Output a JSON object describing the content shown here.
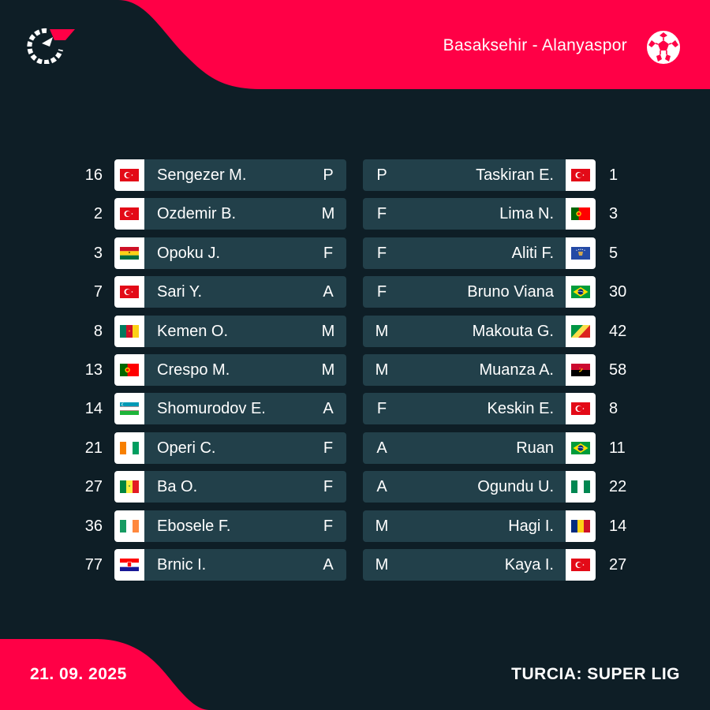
{
  "header": {
    "match_title": "Basaksehir - Alanyaspor",
    "logo_icon": "flashscore-logo-icon",
    "ball_icon": "football-icon",
    "accent_color": "#ff0046"
  },
  "footer": {
    "date": "21. 09. 2025",
    "competition": "TURCIA: SUPER LIG"
  },
  "home_lineup": [
    {
      "number": "16",
      "name": "Sengezer M.",
      "position": "P",
      "flag": "turkey"
    },
    {
      "number": "2",
      "name": "Ozdemir B.",
      "position": "M",
      "flag": "turkey"
    },
    {
      "number": "3",
      "name": "Opoku J.",
      "position": "F",
      "flag": "ghana"
    },
    {
      "number": "7",
      "name": "Sari Y.",
      "position": "A",
      "flag": "turkey"
    },
    {
      "number": "8",
      "name": "Kemen O.",
      "position": "M",
      "flag": "cameroon"
    },
    {
      "number": "13",
      "name": "Crespo M.",
      "position": "M",
      "flag": "portugal"
    },
    {
      "number": "14",
      "name": "Shomurodov E.",
      "position": "A",
      "flag": "uzbekistan"
    },
    {
      "number": "21",
      "name": "Operi C.",
      "position": "F",
      "flag": "ivory-coast"
    },
    {
      "number": "27",
      "name": "Ba O.",
      "position": "F",
      "flag": "senegal"
    },
    {
      "number": "36",
      "name": "Ebosele F.",
      "position": "F",
      "flag": "ireland"
    },
    {
      "number": "77",
      "name": "Brnic I.",
      "position": "A",
      "flag": "croatia"
    }
  ],
  "away_lineup": [
    {
      "number": "1",
      "name": "Taskiran E.",
      "position": "P",
      "flag": "turkey"
    },
    {
      "number": "3",
      "name": "Lima N.",
      "position": "F",
      "flag": "portugal"
    },
    {
      "number": "5",
      "name": "Aliti F.",
      "position": "F",
      "flag": "kosovo"
    },
    {
      "number": "30",
      "name": "Bruno Viana",
      "position": "F",
      "flag": "brazil"
    },
    {
      "number": "42",
      "name": "Makouta G.",
      "position": "M",
      "flag": "congo"
    },
    {
      "number": "58",
      "name": "Muanza A.",
      "position": "M",
      "flag": "angola"
    },
    {
      "number": "8",
      "name": "Keskin E.",
      "position": "F",
      "flag": "turkey"
    },
    {
      "number": "11",
      "name": "Ruan",
      "position": "A",
      "flag": "brazil"
    },
    {
      "number": "22",
      "name": "Ogundu U.",
      "position": "A",
      "flag": "nigeria"
    },
    {
      "number": "14",
      "name": "Hagi I.",
      "position": "M",
      "flag": "romania"
    },
    {
      "number": "27",
      "name": "Kaya I.",
      "position": "M",
      "flag": "turkey"
    }
  ]
}
